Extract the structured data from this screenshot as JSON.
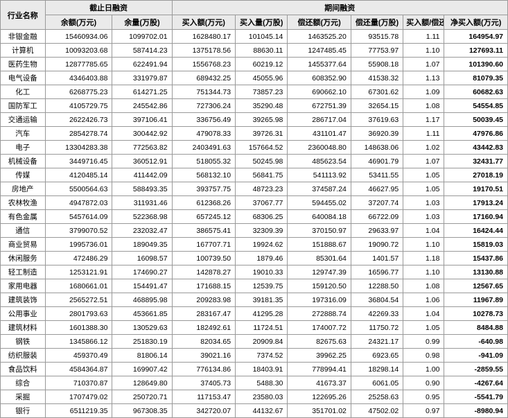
{
  "headers": {
    "group1": "截止日融资",
    "group2": "期间融资",
    "industry": "行业名称",
    "balance": "余额(万元)",
    "shares": "余量(万股)",
    "buyAmt": "买入额(万元)",
    "buyQty": "买入量(万股)",
    "repayAmt": "偿还额(万元)",
    "repayQty": "偿还量(万股)",
    "ratio": "买入额/偿还额",
    "netBuy": "净买入额(万元)"
  },
  "rows": [
    {
      "name": "非银金融",
      "balance": "15460934.06",
      "shares": "1099702.01",
      "buyAmt": "1628480.17",
      "buyQty": "101045.14",
      "repayAmt": "1463525.20",
      "repayQty": "93515.78",
      "ratio": "1.11",
      "netBuy": "164954.97"
    },
    {
      "name": "计算机",
      "balance": "10093203.68",
      "shares": "587414.23",
      "buyAmt": "1375178.56",
      "buyQty": "88630.11",
      "repayAmt": "1247485.45",
      "repayQty": "77753.97",
      "ratio": "1.10",
      "netBuy": "127693.11"
    },
    {
      "name": "医药生物",
      "balance": "12877785.65",
      "shares": "622491.94",
      "buyAmt": "1556768.23",
      "buyQty": "60219.12",
      "repayAmt": "1455377.64",
      "repayQty": "55908.18",
      "ratio": "1.07",
      "netBuy": "101390.60"
    },
    {
      "name": "电气设备",
      "balance": "4346403.88",
      "shares": "331979.87",
      "buyAmt": "689432.25",
      "buyQty": "45055.96",
      "repayAmt": "608352.90",
      "repayQty": "41538.32",
      "ratio": "1.13",
      "netBuy": "81079.35"
    },
    {
      "name": "化工",
      "balance": "6268775.23",
      "shares": "614271.25",
      "buyAmt": "751344.73",
      "buyQty": "73857.23",
      "repayAmt": "690662.10",
      "repayQty": "67301.62",
      "ratio": "1.09",
      "netBuy": "60682.63"
    },
    {
      "name": "国防军工",
      "balance": "4105729.75",
      "shares": "245542.86",
      "buyAmt": "727306.24",
      "buyQty": "35290.48",
      "repayAmt": "672751.39",
      "repayQty": "32654.15",
      "ratio": "1.08",
      "netBuy": "54554.85"
    },
    {
      "name": "交通运输",
      "balance": "2622426.73",
      "shares": "397106.41",
      "buyAmt": "336756.49",
      "buyQty": "39265.98",
      "repayAmt": "286717.04",
      "repayQty": "37619.63",
      "ratio": "1.17",
      "netBuy": "50039.45"
    },
    {
      "name": "汽车",
      "balance": "2854278.74",
      "shares": "300442.92",
      "buyAmt": "479078.33",
      "buyQty": "39726.31",
      "repayAmt": "431101.47",
      "repayQty": "36920.39",
      "ratio": "1.11",
      "netBuy": "47976.86"
    },
    {
      "name": "电子",
      "balance": "13304283.38",
      "shares": "772563.82",
      "buyAmt": "2403491.63",
      "buyQty": "157664.52",
      "repayAmt": "2360048.80",
      "repayQty": "148638.06",
      "ratio": "1.02",
      "netBuy": "43442.83"
    },
    {
      "name": "机械设备",
      "balance": "3449716.45",
      "shares": "360512.91",
      "buyAmt": "518055.32",
      "buyQty": "50245.98",
      "repayAmt": "485623.54",
      "repayQty": "46901.79",
      "ratio": "1.07",
      "netBuy": "32431.77"
    },
    {
      "name": "传媒",
      "balance": "4120485.14",
      "shares": "411442.09",
      "buyAmt": "568132.10",
      "buyQty": "56841.75",
      "repayAmt": "541113.92",
      "repayQty": "53411.55",
      "ratio": "1.05",
      "netBuy": "27018.19"
    },
    {
      "name": "房地产",
      "balance": "5500564.63",
      "shares": "588493.35",
      "buyAmt": "393757.75",
      "buyQty": "48723.23",
      "repayAmt": "374587.24",
      "repayQty": "46627.95",
      "ratio": "1.05",
      "netBuy": "19170.51"
    },
    {
      "name": "农林牧渔",
      "balance": "4947872.03",
      "shares": "311931.46",
      "buyAmt": "612368.26",
      "buyQty": "37067.77",
      "repayAmt": "594455.02",
      "repayQty": "37207.74",
      "ratio": "1.03",
      "netBuy": "17913.24"
    },
    {
      "name": "有色金属",
      "balance": "5457614.09",
      "shares": "522368.98",
      "buyAmt": "657245.12",
      "buyQty": "68306.25",
      "repayAmt": "640084.18",
      "repayQty": "66722.09",
      "ratio": "1.03",
      "netBuy": "17160.94"
    },
    {
      "name": "通信",
      "balance": "3799070.52",
      "shares": "232032.47",
      "buyAmt": "386575.41",
      "buyQty": "32309.39",
      "repayAmt": "370150.97",
      "repayQty": "29633.97",
      "ratio": "1.04",
      "netBuy": "16424.44"
    },
    {
      "name": "商业贸易",
      "balance": "1995736.01",
      "shares": "189049.35",
      "buyAmt": "167707.71",
      "buyQty": "19924.62",
      "repayAmt": "151888.67",
      "repayQty": "19090.72",
      "ratio": "1.10",
      "netBuy": "15819.03"
    },
    {
      "name": "休闲服务",
      "balance": "472486.29",
      "shares": "16098.57",
      "buyAmt": "100739.50",
      "buyQty": "1879.46",
      "repayAmt": "85301.64",
      "repayQty": "1401.57",
      "ratio": "1.18",
      "netBuy": "15437.86"
    },
    {
      "name": "轻工制造",
      "balance": "1253121.91",
      "shares": "174690.27",
      "buyAmt": "142878.27",
      "buyQty": "19010.33",
      "repayAmt": "129747.39",
      "repayQty": "16596.77",
      "ratio": "1.10",
      "netBuy": "13130.88"
    },
    {
      "name": "家用电器",
      "balance": "1680661.01",
      "shares": "154491.47",
      "buyAmt": "171688.15",
      "buyQty": "12539.75",
      "repayAmt": "159120.50",
      "repayQty": "12288.50",
      "ratio": "1.08",
      "netBuy": "12567.65"
    },
    {
      "name": "建筑装饰",
      "balance": "2565272.51",
      "shares": "468895.98",
      "buyAmt": "209283.98",
      "buyQty": "39181.35",
      "repayAmt": "197316.09",
      "repayQty": "36804.54",
      "ratio": "1.06",
      "netBuy": "11967.89"
    },
    {
      "name": "公用事业",
      "balance": "2801793.63",
      "shares": "453661.85",
      "buyAmt": "283167.47",
      "buyQty": "41295.28",
      "repayAmt": "272888.74",
      "repayQty": "42269.33",
      "ratio": "1.04",
      "netBuy": "10278.73"
    },
    {
      "name": "建筑材料",
      "balance": "1601388.30",
      "shares": "130529.63",
      "buyAmt": "182492.61",
      "buyQty": "11724.51",
      "repayAmt": "174007.72",
      "repayQty": "11750.72",
      "ratio": "1.05",
      "netBuy": "8484.88"
    },
    {
      "name": "钢铁",
      "balance": "1345866.12",
      "shares": "251830.19",
      "buyAmt": "82034.65",
      "buyQty": "20909.84",
      "repayAmt": "82675.63",
      "repayQty": "24321.17",
      "ratio": "0.99",
      "netBuy": "-640.98"
    },
    {
      "name": "纺织服装",
      "balance": "459370.49",
      "shares": "81806.14",
      "buyAmt": "39021.16",
      "buyQty": "7374.52",
      "repayAmt": "39962.25",
      "repayQty": "6923.65",
      "ratio": "0.98",
      "netBuy": "-941.09"
    },
    {
      "name": "食品饮料",
      "balance": "4584364.87",
      "shares": "169907.42",
      "buyAmt": "776134.86",
      "buyQty": "18403.91",
      "repayAmt": "778994.41",
      "repayQty": "18298.14",
      "ratio": "1.00",
      "netBuy": "-2859.55"
    },
    {
      "name": "综合",
      "balance": "710370.87",
      "shares": "128649.80",
      "buyAmt": "37405.73",
      "buyQty": "5488.30",
      "repayAmt": "41673.37",
      "repayQty": "6061.05",
      "ratio": "0.90",
      "netBuy": "-4267.64"
    },
    {
      "name": "采掘",
      "balance": "1707479.02",
      "shares": "250720.71",
      "buyAmt": "117153.47",
      "buyQty": "23580.03",
      "repayAmt": "122695.26",
      "repayQty": "25258.63",
      "ratio": "0.95",
      "netBuy": "-5541.79"
    },
    {
      "name": "银行",
      "balance": "6511219.35",
      "shares": "967308.35",
      "buyAmt": "342720.07",
      "buyQty": "44132.67",
      "repayAmt": "351701.02",
      "repayQty": "47502.02",
      "ratio": "0.97",
      "netBuy": "-8980.94"
    }
  ],
  "style": {
    "header_bg": "#eaeaea",
    "border_color": "#999999",
    "font_size_header": 11,
    "font_size_body": 10.5
  }
}
